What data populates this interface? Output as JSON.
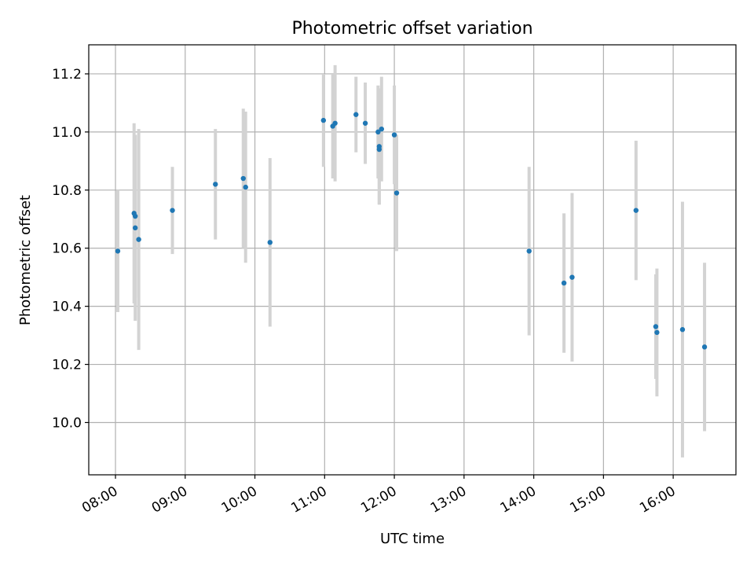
{
  "chart_data": {
    "type": "scatter",
    "title": "Photometric offset variation",
    "xlabel": "UTC time",
    "ylabel": "Photometric offset",
    "x_ticks": [
      "08:00",
      "09:00",
      "10:00",
      "11:00",
      "12:00",
      "13:00",
      "14:00",
      "15:00",
      "16:00"
    ],
    "y_ticks": [
      "10.0",
      "10.2",
      "10.4",
      "10.6",
      "10.8",
      "11.0",
      "11.2"
    ],
    "xlim": [
      "07:37",
      "16:54"
    ],
    "ylim": [
      9.82,
      11.3
    ],
    "grid": true,
    "marker_color": "#1f77b4",
    "errorbar_color": "#d3d3d3",
    "points": [
      {
        "x": "08:02",
        "y": 10.59,
        "err": 0.21
      },
      {
        "x": "08:16",
        "y": 10.72,
        "err": 0.31
      },
      {
        "x": "08:17",
        "y": 10.71,
        "err": 0.28
      },
      {
        "x": "08:17",
        "y": 10.67,
        "err": 0.32
      },
      {
        "x": "08:20",
        "y": 10.63,
        "err": 0.38
      },
      {
        "x": "08:49",
        "y": 10.73,
        "err": 0.15
      },
      {
        "x": "09:26",
        "y": 10.82,
        "err": 0.19
      },
      {
        "x": "09:50",
        "y": 10.84,
        "err": 0.24
      },
      {
        "x": "09:52",
        "y": 10.81,
        "err": 0.26
      },
      {
        "x": "10:13",
        "y": 10.62,
        "err": 0.29
      },
      {
        "x": "10:59",
        "y": 11.04,
        "err": 0.16
      },
      {
        "x": "11:07",
        "y": 11.02,
        "err": 0.18
      },
      {
        "x": "11:09",
        "y": 11.03,
        "err": 0.2
      },
      {
        "x": "11:27",
        "y": 11.06,
        "err": 0.13
      },
      {
        "x": "11:35",
        "y": 11.03,
        "err": 0.14
      },
      {
        "x": "11:46",
        "y": 11.0,
        "err": 0.16
      },
      {
        "x": "11:47",
        "y": 10.95,
        "err": 0.2
      },
      {
        "x": "11:47",
        "y": 10.94,
        "err": 0.19
      },
      {
        "x": "11:49",
        "y": 11.01,
        "err": 0.18
      },
      {
        "x": "12:00",
        "y": 10.99,
        "err": 0.17
      },
      {
        "x": "12:02",
        "y": 10.79,
        "err": 0.2
      },
      {
        "x": "13:56",
        "y": 10.59,
        "err": 0.29
      },
      {
        "x": "14:26",
        "y": 10.48,
        "err": 0.24
      },
      {
        "x": "14:33",
        "y": 10.5,
        "err": 0.29
      },
      {
        "x": "15:28",
        "y": 10.73,
        "err": 0.24
      },
      {
        "x": "15:45",
        "y": 10.33,
        "err": 0.18
      },
      {
        "x": "15:46",
        "y": 10.31,
        "err": 0.22
      },
      {
        "x": "16:08",
        "y": 10.32,
        "err": 0.44
      },
      {
        "x": "16:27",
        "y": 10.26,
        "err": 0.29
      }
    ]
  }
}
